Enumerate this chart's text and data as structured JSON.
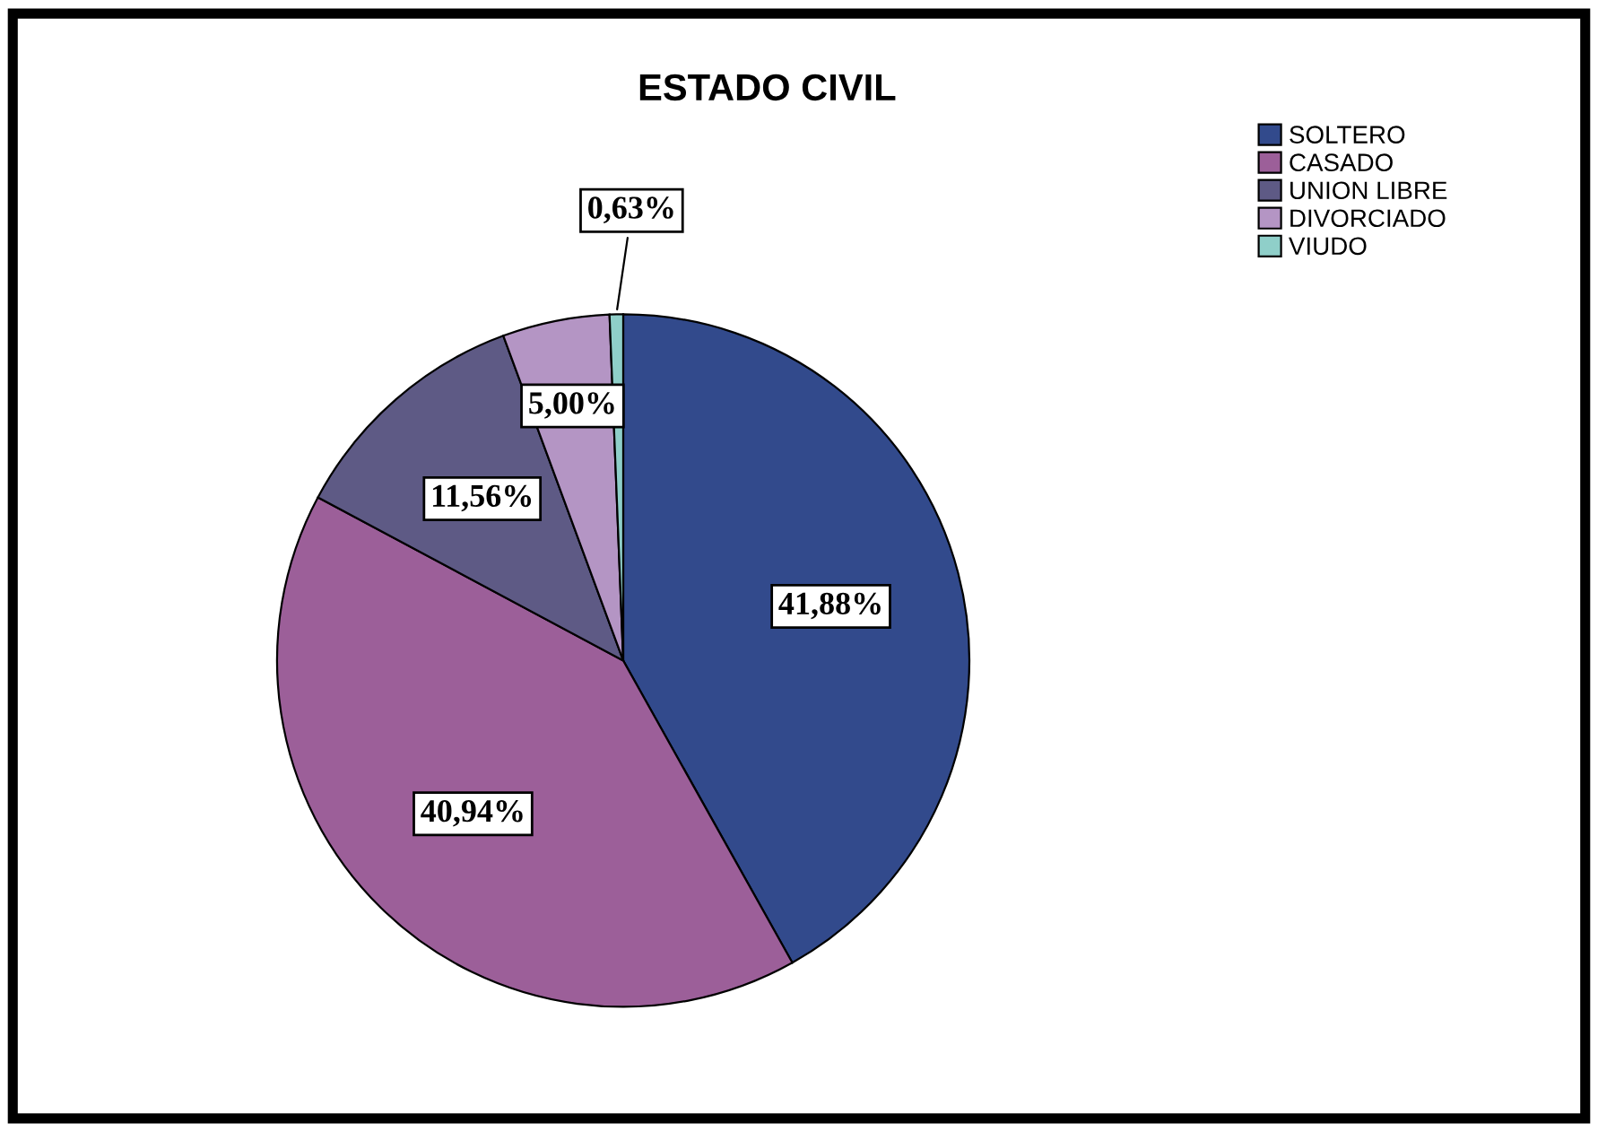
{
  "chart_data": {
    "type": "pie",
    "title": "ESTADO CIVIL",
    "categories": [
      "SOLTERO",
      "CASADO",
      "UNION LIBRE",
      "DIVORCIADO",
      "VIUDO"
    ],
    "values": [
      41.88,
      40.94,
      11.56,
      5.0,
      0.63
    ],
    "colors": [
      "#324a8c",
      "#9c5f99",
      "#5e5a85",
      "#b495c4",
      "#8fcfc9"
    ],
    "value_labels": [
      "41,88%",
      "40,94%",
      "11,56%",
      "5,00%",
      "0,63%"
    ],
    "legend": "top right"
  }
}
